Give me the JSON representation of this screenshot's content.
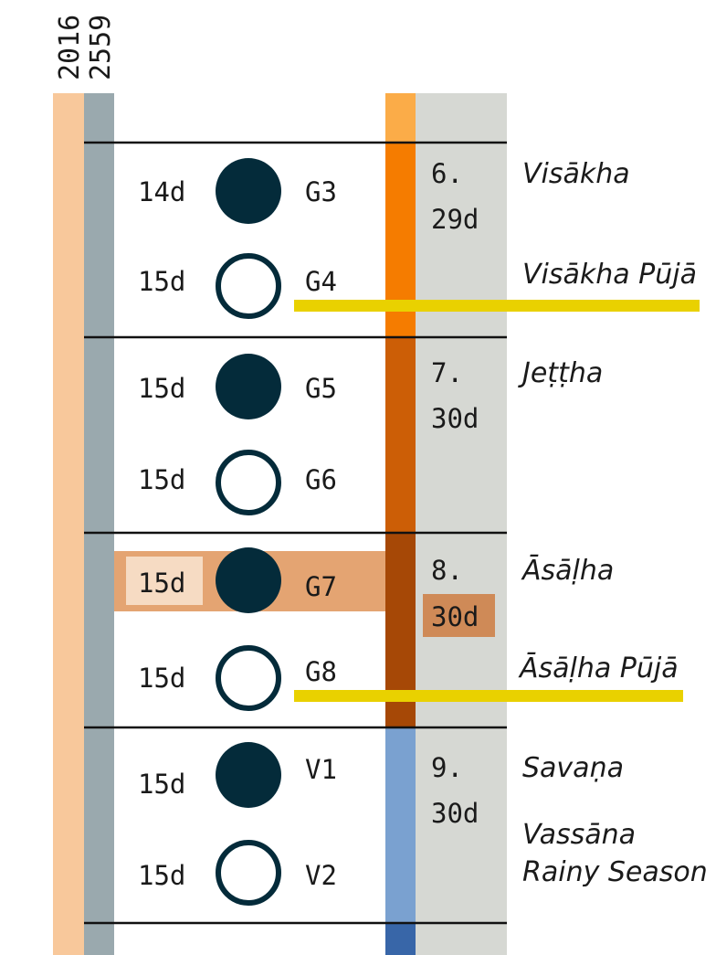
{
  "years": {
    "gregorian": "2016",
    "buddhist": "2559"
  },
  "colors": {
    "year_band": "#f8c89b",
    "gray_band": "#9aa9ae",
    "month_band": "#d6d8d3",
    "month_6": "#f57c00",
    "month_6_cap": "#fbac48",
    "month_7": "#cc5e06",
    "month_8": "#a64806",
    "month_9": "#7aa1d0",
    "month_9_foot": "#3866a8",
    "moon": "#042b3a",
    "highlight_row": "#e4a472",
    "highlight_cell": "#f6dbc3",
    "highlight_days": "#cf8a57",
    "puja_line": "#e9d100",
    "rule": "#111111"
  },
  "moons": [
    {
      "days": "14d",
      "phase": "full",
      "code": "G3"
    },
    {
      "days": "15d",
      "phase": "new",
      "code": "G4"
    },
    {
      "days": "15d",
      "phase": "full",
      "code": "G5"
    },
    {
      "days": "15d",
      "phase": "new",
      "code": "G6"
    },
    {
      "days": "15d",
      "phase": "full",
      "code": "G7"
    },
    {
      "days": "15d",
      "phase": "new",
      "code": "G8"
    },
    {
      "days": "15d",
      "phase": "full",
      "code": "V1"
    },
    {
      "days": "15d",
      "phase": "new",
      "code": "V2"
    }
  ],
  "months": [
    {
      "number": "6.",
      "days": "29d",
      "name": "Visākha"
    },
    {
      "number": "7.",
      "days": "30d",
      "name": "Jeṭṭha"
    },
    {
      "number": "8.",
      "days": "30d",
      "name": "Āsāḷha"
    },
    {
      "number": "9.",
      "days": "30d",
      "name": "Savaṇa"
    }
  ],
  "observances": {
    "visakha_puja": "Visākha Pūjā",
    "asalha_puja": "Āsāḷha Pūjā",
    "vassana": "Vassāna",
    "rainy_season": "Rainy Season"
  }
}
